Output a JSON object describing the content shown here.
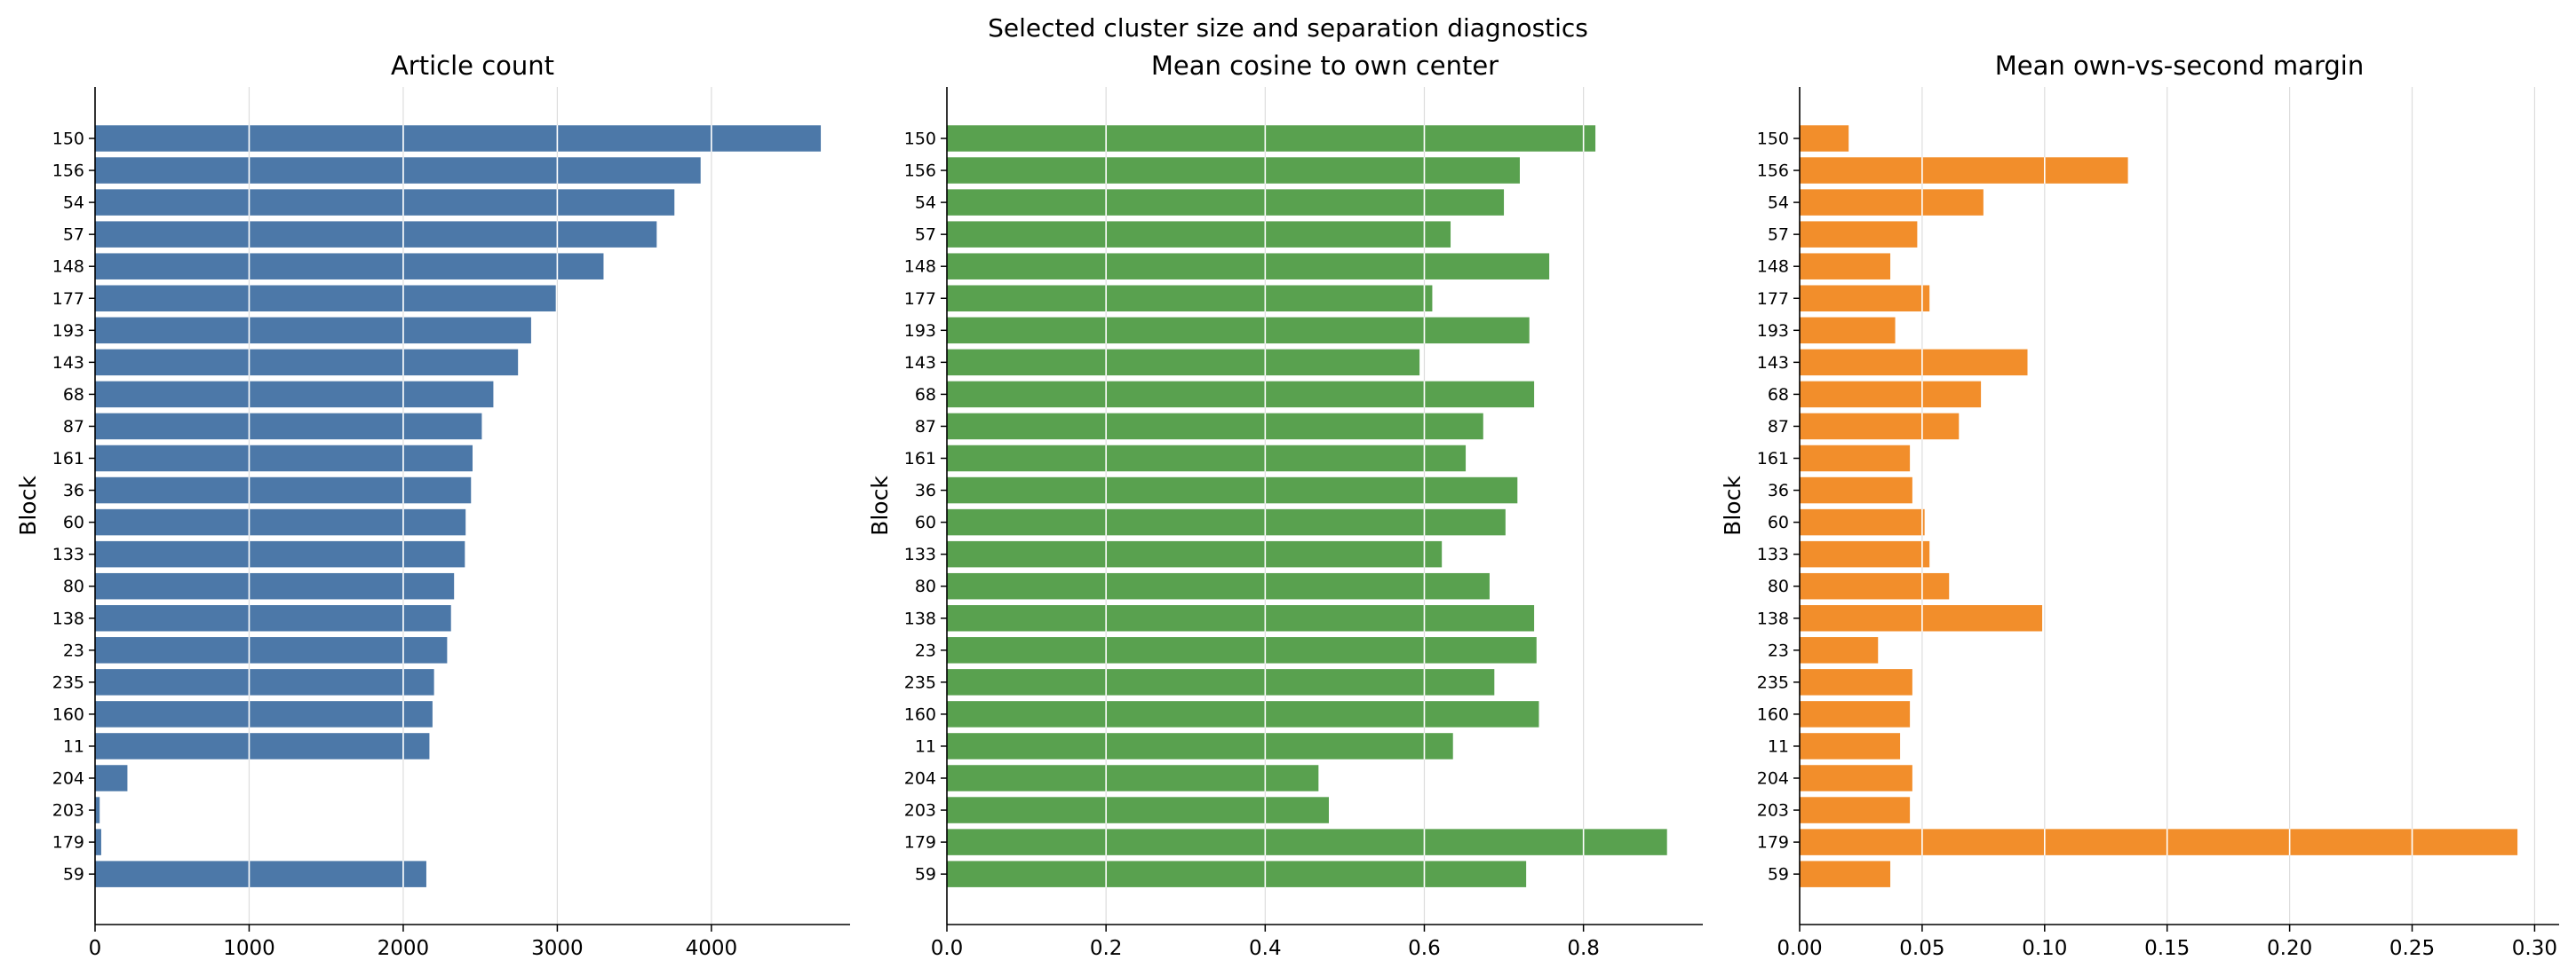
{
  "figure": {
    "title": "Selected cluster size and separation diagnostics"
  },
  "chart_data": [
    {
      "type": "bar",
      "orientation": "horizontal",
      "title": "Article count",
      "xlabel": "",
      "ylabel": "Block",
      "categories": [
        "150",
        "156",
        "54",
        "57",
        "148",
        "177",
        "193",
        "143",
        "68",
        "87",
        "161",
        "36",
        "60",
        "133",
        "80",
        "138",
        "23",
        "235",
        "160",
        "11",
        "204",
        "203",
        "179",
        "59"
      ],
      "values": [
        4710,
        3930,
        3760,
        3645,
        3300,
        2990,
        2830,
        2745,
        2585,
        2510,
        2450,
        2440,
        2405,
        2400,
        2330,
        2310,
        2285,
        2200,
        2190,
        2170,
        210,
        30,
        40,
        2150
      ],
      "xlim": [
        0,
        4900
      ],
      "xticks": [
        0,
        1000,
        2000,
        3000,
        4000
      ],
      "xtick_labels": [
        "0",
        "1000",
        "2000",
        "3000",
        "4000"
      ],
      "color": "#4c78a8",
      "grid": "x"
    },
    {
      "type": "bar",
      "orientation": "horizontal",
      "title": "Mean cosine to own center",
      "xlabel": "",
      "ylabel": "Block",
      "categories": [
        "150",
        "156",
        "54",
        "57",
        "148",
        "177",
        "193",
        "143",
        "68",
        "87",
        "161",
        "36",
        "60",
        "133",
        "80",
        "138",
        "23",
        "235",
        "160",
        "11",
        "204",
        "203",
        "179",
        "59"
      ],
      "values": [
        0.815,
        0.72,
        0.7,
        0.633,
        0.757,
        0.61,
        0.732,
        0.594,
        0.738,
        0.674,
        0.652,
        0.717,
        0.702,
        0.622,
        0.682,
        0.738,
        0.741,
        0.688,
        0.744,
        0.636,
        0.467,
        0.48,
        0.905,
        0.728
      ],
      "xlim": [
        0,
        0.95
      ],
      "xticks": [
        0,
        0.2,
        0.4,
        0.6,
        0.8
      ],
      "xtick_labels": [
        "0.0",
        "0.2",
        "0.4",
        "0.6",
        "0.8"
      ],
      "color": "#59a14f",
      "grid": "x"
    },
    {
      "type": "bar",
      "orientation": "horizontal",
      "title": "Mean own-vs-second margin",
      "xlabel": "",
      "ylabel": "Block",
      "categories": [
        "150",
        "156",
        "54",
        "57",
        "148",
        "177",
        "193",
        "143",
        "68",
        "87",
        "161",
        "36",
        "60",
        "133",
        "80",
        "138",
        "23",
        "235",
        "160",
        "11",
        "204",
        "203",
        "179",
        "59"
      ],
      "values": [
        0.02,
        0.134,
        0.075,
        0.048,
        0.037,
        0.053,
        0.039,
        0.093,
        0.074,
        0.065,
        0.045,
        0.046,
        0.051,
        0.053,
        0.061,
        0.099,
        0.032,
        0.046,
        0.045,
        0.041,
        0.046,
        0.045,
        0.293,
        0.037
      ],
      "xlim": [
        0,
        0.31
      ],
      "xticks": [
        0,
        0.05,
        0.1,
        0.15,
        0.2,
        0.25,
        0.3
      ],
      "xtick_labels": [
        "0.00",
        "0.05",
        "0.10",
        "0.15",
        "0.20",
        "0.25",
        "0.30"
      ],
      "color": "#f28e2b",
      "grid": "x"
    }
  ]
}
